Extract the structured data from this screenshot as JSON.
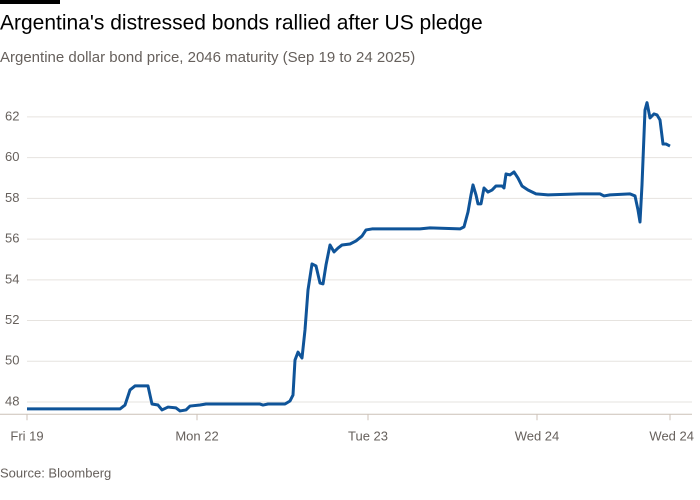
{
  "chart_data": {
    "type": "line",
    "title": "Argentina's distressed bonds rallied after US pledge",
    "subtitle": "Argentine dollar bond price, 2046 maturity (Sep 19 to 24 2025)",
    "source": "Source: Bloomberg",
    "x": [
      0,
      93,
      98,
      103,
      108,
      121,
      123,
      125,
      131,
      135,
      141,
      149,
      153,
      159,
      163,
      173,
      179,
      233,
      236,
      241,
      258,
      263,
      266,
      268,
      271,
      275,
      278,
      281,
      285,
      289,
      293,
      296,
      299,
      303,
      307,
      311,
      315,
      323,
      329,
      335,
      339,
      345,
      393,
      403,
      433,
      437,
      441,
      444,
      446,
      449,
      451,
      454,
      457,
      461,
      465,
      469,
      475,
      477,
      479,
      483,
      487,
      491,
      495,
      501,
      509,
      521,
      553,
      573,
      577,
      583,
      603,
      608,
      611,
      613,
      615,
      618,
      620,
      623,
      627,
      630,
      633,
      636,
      639,
      643
    ],
    "series": [
      {
        "name": "Price",
        "color": "#0f5499",
        "values": [
          47.66,
          47.66,
          47.85,
          48.59,
          48.79,
          48.79,
          48.34,
          47.9,
          47.85,
          47.61,
          47.75,
          47.71,
          47.56,
          47.61,
          47.8,
          47.85,
          47.9,
          47.9,
          47.85,
          47.9,
          47.9,
          48.05,
          48.34,
          50.06,
          50.45,
          50.16,
          51.54,
          53.5,
          54.78,
          54.68,
          53.84,
          53.8,
          54.73,
          55.71,
          55.37,
          55.56,
          55.71,
          55.76,
          55.91,
          56.15,
          56.45,
          56.5,
          56.5,
          56.55,
          56.5,
          56.6,
          57.33,
          58.17,
          58.66,
          58.17,
          57.73,
          57.73,
          58.51,
          58.31,
          58.41,
          58.61,
          58.61,
          58.51,
          59.2,
          59.15,
          59.3,
          59.0,
          58.61,
          58.41,
          58.22,
          58.17,
          58.22,
          58.22,
          58.12,
          58.17,
          58.22,
          58.12,
          57.43,
          56.84,
          58.66,
          62.34,
          62.7,
          61.95,
          62.15,
          62.1,
          61.85,
          60.67,
          60.67,
          60.57
        ]
      }
    ],
    "xlim": [
      0,
      646
    ],
    "xticks": [
      {
        "value": 0,
        "label": "Fri 19"
      },
      {
        "value": 170,
        "label": "Mon 22"
      },
      {
        "value": 341,
        "label": "Tue 23"
      },
      {
        "value": 510,
        "label": "Wed 24"
      },
      {
        "value": 643,
        "label": "Wed 24"
      }
    ],
    "ylim": [
      47.4,
      63.2
    ],
    "yticks": [
      48,
      50,
      52,
      54,
      56,
      58,
      60,
      62
    ],
    "grid": true
  }
}
